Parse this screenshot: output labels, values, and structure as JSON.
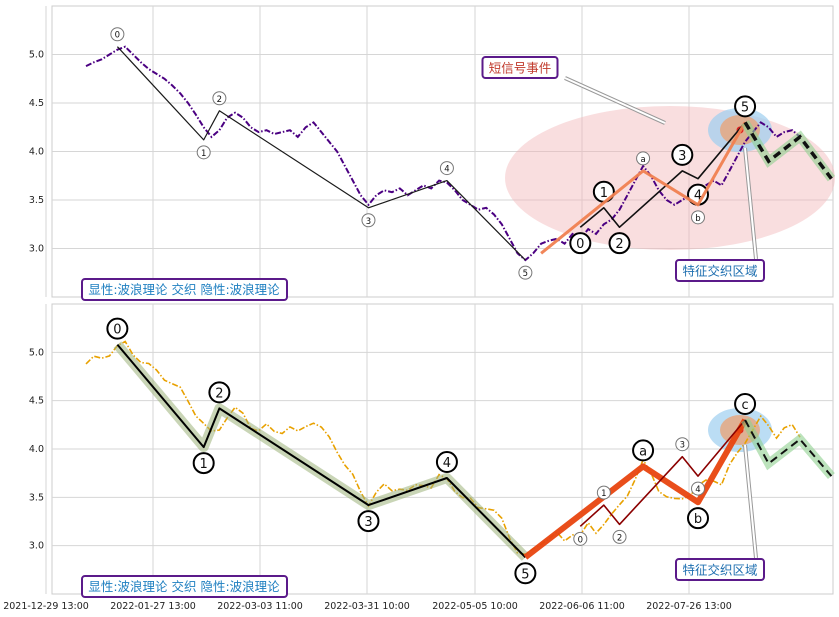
{
  "chart_data": [
    {
      "type": "line",
      "panel": "top",
      "ylim": [
        2.5,
        5.5
      ],
      "yticks": [
        3.0,
        3.5,
        4.0,
        4.5,
        5.0
      ],
      "grid": true,
      "xticks": [
        "2021-12-29 13:00",
        "2022-01-27 13:00",
        "2022-03-03 11:00",
        "2022-03-31 10:00",
        "2022-05-05 10:00",
        "2022-06-06 11:00",
        "2022-07-26 13:00"
      ],
      "price_color": "#4b0082",
      "price_style": "dash-dot",
      "price": [
        4.88,
        4.92,
        4.95,
        5.0,
        5.05,
        5.08,
        5.0,
        4.92,
        4.85,
        4.8,
        4.75,
        4.68,
        4.6,
        4.5,
        4.38,
        4.25,
        4.15,
        4.22,
        4.35,
        4.4,
        4.35,
        4.25,
        4.2,
        4.22,
        4.18,
        4.2,
        4.22,
        4.15,
        4.25,
        4.3,
        4.2,
        4.1,
        4.0,
        3.85,
        3.7,
        3.55,
        3.45,
        3.55,
        3.6,
        3.58,
        3.62,
        3.55,
        3.6,
        3.65,
        3.62,
        3.7,
        3.68,
        3.6,
        3.5,
        3.45,
        3.4,
        3.42,
        3.35,
        3.25,
        3.1,
        2.95,
        2.88,
        2.95,
        3.05,
        3.08,
        3.1,
        3.05,
        3.15,
        3.1,
        3.2,
        3.15,
        3.25,
        3.3,
        3.4,
        3.55,
        3.7,
        3.85,
        3.75,
        3.6,
        3.5,
        3.45,
        3.5,
        3.55,
        3.6,
        3.65,
        3.7,
        3.65,
        3.8,
        3.95,
        4.1,
        4.2,
        4.3,
        4.25,
        4.15,
        4.2,
        4.22,
        4.15
      ],
      "waves": [
        {
          "name": "main",
          "color": "#1a1a1a",
          "points": [
            [
              4,
              5.08
            ],
            [
              15,
              4.12
            ],
            [
              17,
              4.42
            ],
            [
              36,
              3.42
            ],
            [
              46,
              3.7
            ],
            [
              56,
              2.88
            ]
          ],
          "labels": [
            "0",
            "1",
            "2",
            "3",
            "4",
            "5"
          ],
          "badge": "small"
        },
        {
          "name": "sub",
          "color": "#111111",
          "points": [
            [
              63,
              3.22
            ],
            [
              66,
              3.42
            ],
            [
              68,
              3.22
            ],
            [
              76,
              3.8
            ],
            [
              78,
              3.72
            ],
            [
              84,
              4.3
            ]
          ],
          "labels": [
            "0",
            "1",
            "2",
            "3",
            "4",
            "5"
          ],
          "badge": "large"
        },
        {
          "name": "correction",
          "color": "#f08050",
          "points": [
            [
              58,
              2.95
            ],
            [
              71,
              3.8
            ],
            [
              78,
              3.45
            ],
            [
              84,
              4.3
            ]
          ],
          "labels": [
            "",
            "a",
            "b",
            ""
          ],
          "badge": "small"
        },
        {
          "name": "projection",
          "color": "#111111",
          "dashed": true,
          "points": [
            [
              84,
              4.3
            ],
            [
              87,
              3.9
            ],
            [
              91,
              4.15
            ],
            [
              95,
              3.72
            ]
          ],
          "labels": []
        }
      ],
      "legend_text": "显性:波浪理论 交织 隐性:波浪理论",
      "annotations": [
        {
          "text": "短信号事件",
          "color": "#c0392b"
        },
        {
          "text": "特征交织区域",
          "color": "#1e6fb0"
        }
      ]
    },
    {
      "type": "line",
      "panel": "bottom",
      "ylim": [
        2.5,
        5.5
      ],
      "yticks": [
        3.0,
        3.5,
        4.0,
        4.5,
        5.0
      ],
      "grid": true,
      "price_color": "#e8a100",
      "price_style": "dash-dot",
      "waves": [
        {
          "name": "main",
          "color": "#000000",
          "points": [
            [
              4,
              5.08
            ],
            [
              15,
              4.02
            ],
            [
              17,
              4.42
            ],
            [
              36,
              3.42
            ],
            [
              46,
              3.7
            ],
            [
              56,
              2.88
            ]
          ],
          "labels": [
            "0",
            "1",
            "2",
            "3",
            "4",
            "5"
          ],
          "badge": "large"
        },
        {
          "name": "correction",
          "color": "#e8450f",
          "points": [
            [
              56,
              2.88
            ],
            [
              71,
              3.82
            ],
            [
              78,
              3.45
            ],
            [
              84,
              4.3
            ]
          ],
          "labels": [
            "",
            "a",
            "b",
            "c"
          ],
          "badge": "large"
        },
        {
          "name": "sub",
          "color": "#8b0000",
          "points": [
            [
              63,
              3.2
            ],
            [
              66,
              3.42
            ],
            [
              68,
              3.22
            ],
            [
              76,
              3.92
            ],
            [
              78,
              3.72
            ],
            [
              84,
              4.3
            ]
          ],
          "labels": [
            "0",
            "1",
            "2",
            "3",
            "4",
            ""
          ],
          "badge": "small"
        },
        {
          "name": "projection",
          "color": "#111111",
          "dashed": true,
          "points": [
            [
              84,
              4.3
            ],
            [
              87,
              3.85
            ],
            [
              91,
              4.1
            ],
            [
              95,
              3.72
            ]
          ],
          "labels": []
        }
      ],
      "legend_text": "显性:波浪理论 交织 隐性:波浪理论",
      "annotations": [
        {
          "text": "特征交织区域",
          "color": "#1e6fb0"
        }
      ]
    }
  ]
}
